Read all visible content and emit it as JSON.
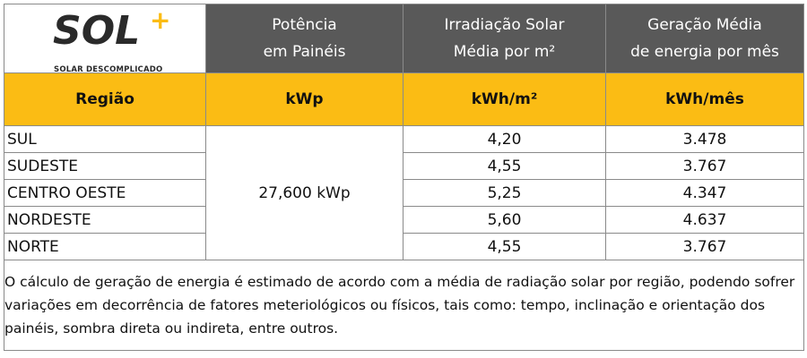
{
  "logo": {
    "wordmark": "SOL",
    "plus": "+",
    "tagline": "SOLAR DESCOMPLICADO"
  },
  "header": {
    "potencia": [
      "Potência",
      "em Painéis"
    ],
    "irradiacao": [
      "Irradiação Solar",
      "Média por m²"
    ],
    "geracao": [
      "Geração Média",
      "de energia por mês"
    ]
  },
  "subheader": {
    "regiao": "Região",
    "kwp": "kWp",
    "kwh_m2": "kWh/m²",
    "kwh_mes": "kWh/mês"
  },
  "power": "27,600 kWp",
  "rows": [
    {
      "regiao": "SUL",
      "irradiacao": "4,20",
      "geracao": "3.478"
    },
    {
      "regiao": "SUDESTE",
      "irradiacao": "4,55",
      "geracao": "3.767"
    },
    {
      "regiao": "CENTRO OESTE",
      "irradiacao": "5,25",
      "geracao": "4.347"
    },
    {
      "regiao": "NORDESTE",
      "irradiacao": "5,60",
      "geracao": "4.637"
    },
    {
      "regiao": "NORTE",
      "irradiacao": "4,55",
      "geracao": "3.767"
    }
  ],
  "note": "O cálculo de geração de energia é estimado de acordo com a média de radiação solar por região, podendo sofrer variações em decorrência de fatores meteriológicos ou físicos, tais como: tempo, inclinação e orientação dos painéis, sombra direta ou indireta, entre outros.",
  "colors": {
    "header_gray": "#595959",
    "accent_yellow": "#fbbc14"
  }
}
